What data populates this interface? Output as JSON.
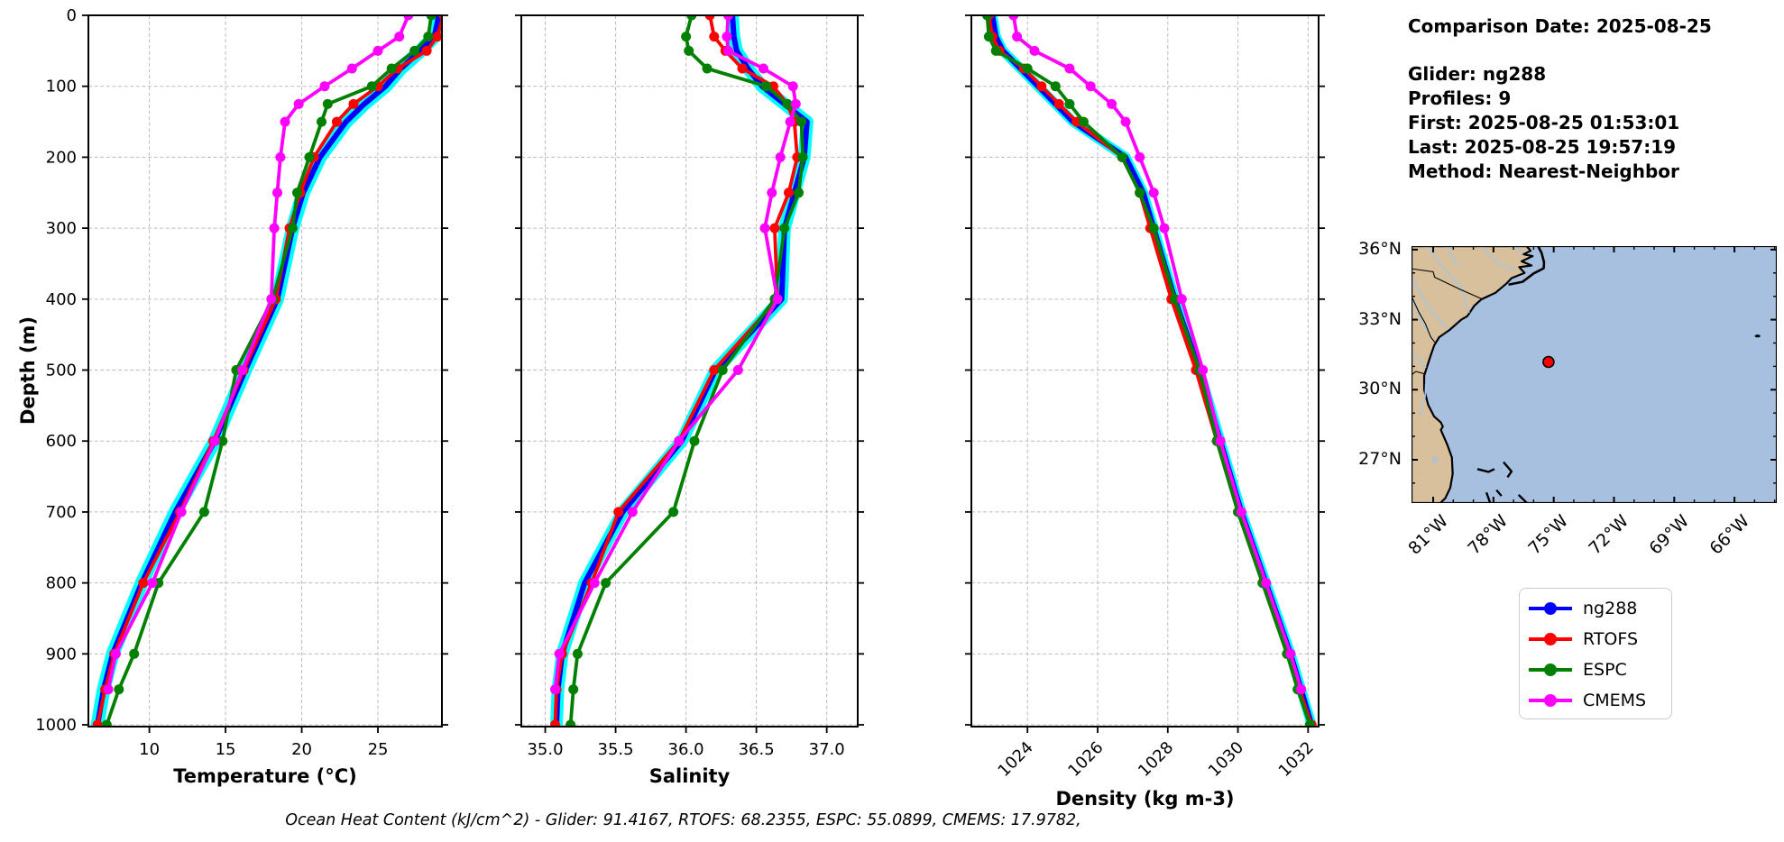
{
  "info": {
    "comparison_date": "Comparison Date: 2025-08-25",
    "glider": "Glider: ng288",
    "profiles": "Profiles: 9",
    "first": "First: 2025-08-25 01:53:01",
    "last": "Last: 2025-08-25 19:57:19",
    "method": "Method: Nearest-Neighbor"
  },
  "caption": "Ocean Heat Content (kJ/cm^2) - Glider: 91.4167,  RTOFS: 68.2355,  ESPC: 55.0899,  CMEMS: 17.9782,",
  "legend": {
    "entries": [
      {
        "label": "ng288",
        "color": "#0000ff"
      },
      {
        "label": "RTOFS",
        "color": "#ff0000"
      },
      {
        "label": "ESPC",
        "color": "#008000"
      },
      {
        "label": "CMEMS",
        "color": "#ff00ff"
      }
    ]
  },
  "map": {
    "lat_labels": [
      "36°N",
      "33°N",
      "30°N",
      "27°N"
    ],
    "lon_labels": [
      "81°W",
      "78°W",
      "75°W",
      "72°W",
      "69°W",
      "66°W"
    ],
    "land_color": "#d9c09c",
    "ocean_color": "#a8c0e0",
    "river_color": "#9ec8ea",
    "lake_color": "#b8bfc9",
    "marker": {
      "lon": -75.26,
      "lat": 31.19,
      "color": "#ff0000"
    }
  },
  "chart_data": [
    {
      "type": "line",
      "id": "temperature",
      "xlabel": "Temperature (°C)",
      "ylabel": "Depth (m)",
      "xlim": [
        6.0,
        29.2
      ],
      "ylim": [
        0,
        1000
      ],
      "xticks": [
        10,
        15,
        20,
        25
      ],
      "xtick_labels": [
        "10",
        "15",
        "20",
        "25"
      ],
      "yticks": [
        0,
        100,
        200,
        300,
        400,
        500,
        600,
        700,
        800,
        900,
        1000
      ],
      "ytick_labels": [
        "0",
        "100",
        "200",
        "300",
        "400",
        "500",
        "600",
        "700",
        "800",
        "900",
        "1000"
      ],
      "grid": true,
      "depths": [
        0,
        30,
        50,
        75,
        100,
        125,
        150,
        200,
        250,
        300,
        400,
        500,
        600,
        700,
        800,
        900,
        950,
        1000
      ],
      "series": [
        {
          "name": "ng288",
          "color": "#0000ff",
          "envelope_color": "#00ffff",
          "marker": false,
          "values": [
            29.0,
            28.7,
            27.8,
            26.5,
            25.5,
            24.1,
            22.9,
            21.2,
            20.1,
            19.4,
            18.4,
            16.3,
            14.3,
            11.7,
            9.5,
            7.6,
            7.0,
            6.6
          ]
        },
        {
          "name": "RTOFS",
          "color": "#ff0000",
          "marker": true,
          "values": [
            29.3,
            28.9,
            28.2,
            26.3,
            25.0,
            23.4,
            22.3,
            20.8,
            19.9,
            19.2,
            18.3,
            16.2,
            14.2,
            12.0,
            9.6,
            7.7,
            7.1,
            6.6
          ]
        },
        {
          "name": "ESPC",
          "color": "#008000",
          "marker": true,
          "values": [
            28.5,
            28.3,
            27.4,
            25.9,
            24.6,
            21.7,
            21.3,
            20.5,
            19.7,
            19.4,
            18.1,
            15.7,
            14.8,
            13.6,
            10.6,
            9.0,
            8.0,
            7.2
          ]
        },
        {
          "name": "CMEMS",
          "color": "#ff00ff",
          "marker": true,
          "values": [
            27.0,
            26.4,
            25.0,
            23.3,
            21.5,
            19.8,
            18.9,
            18.6,
            18.4,
            18.2,
            18.0,
            16.1,
            14.3,
            12.1,
            10.2,
            7.8,
            7.3,
            null
          ]
        }
      ]
    },
    {
      "type": "line",
      "id": "salinity",
      "xlabel": "Salinity",
      "xlim": [
        34.83,
        37.22
      ],
      "ylim": [
        0,
        1000
      ],
      "xticks": [
        35.0,
        35.5,
        36.0,
        36.5,
        37.0
      ],
      "xtick_labels": [
        "35.0",
        "35.5",
        "36.0",
        "36.5",
        "37.0"
      ],
      "yticks": [
        0,
        100,
        200,
        300,
        400,
        500,
        600,
        700,
        800,
        900,
        1000
      ],
      "grid": true,
      "depths": [
        0,
        30,
        50,
        75,
        100,
        125,
        150,
        200,
        250,
        300,
        400,
        500,
        600,
        700,
        800,
        900,
        950,
        1000
      ],
      "series": [
        {
          "name": "ng288",
          "color": "#0000ff",
          "envelope_color": "#00ffff",
          "marker": false,
          "values": [
            36.33,
            36.34,
            36.36,
            36.44,
            36.54,
            36.7,
            36.86,
            36.84,
            36.77,
            36.7,
            36.68,
            36.21,
            35.97,
            35.55,
            35.28,
            35.12,
            35.09,
            35.08
          ]
        },
        {
          "name": "RTOFS",
          "color": "#ff0000",
          "marker": true,
          "values": [
            36.17,
            36.2,
            36.28,
            36.4,
            36.62,
            36.72,
            36.77,
            36.79,
            36.73,
            36.63,
            36.65,
            36.2,
            35.95,
            35.52,
            35.33,
            35.12,
            35.08,
            35.07
          ]
        },
        {
          "name": "ESPC",
          "color": "#008000",
          "marker": true,
          "values": [
            36.04,
            36.0,
            36.02,
            36.15,
            36.57,
            36.72,
            36.82,
            36.83,
            36.8,
            36.7,
            36.63,
            36.26,
            36.06,
            35.91,
            35.43,
            35.23,
            35.2,
            35.18
          ]
        },
        {
          "name": "CMEMS",
          "color": "#ff00ff",
          "marker": true,
          "values": [
            36.3,
            36.29,
            36.3,
            36.55,
            36.76,
            36.78,
            36.74,
            36.67,
            36.61,
            36.56,
            36.65,
            36.37,
            35.95,
            35.62,
            35.35,
            35.1,
            35.07,
            null
          ]
        }
      ]
    },
    {
      "type": "line",
      "id": "density",
      "xlabel": "Density (kg m-3)",
      "xlim": [
        1022.4,
        1032.3
      ],
      "ylim": [
        0,
        1000
      ],
      "xticks": [
        1024,
        1026,
        1028,
        1030,
        1032
      ],
      "xtick_labels": [
        "1024",
        "1026",
        "1028",
        "1030",
        "1032"
      ],
      "yticks": [
        0,
        100,
        200,
        300,
        400,
        500,
        600,
        700,
        800,
        900,
        1000
      ],
      "grid": true,
      "depths": [
        0,
        30,
        50,
        75,
        100,
        125,
        150,
        200,
        250,
        300,
        400,
        500,
        600,
        700,
        800,
        900,
        950,
        1000
      ],
      "series": [
        {
          "name": "ng288",
          "color": "#0000ff",
          "envelope_color": "#00ffff",
          "marker": false,
          "values": [
            1023.0,
            1023.1,
            1023.3,
            1023.8,
            1024.3,
            1024.8,
            1025.3,
            1026.8,
            1027.3,
            1027.6,
            1028.2,
            1028.9,
            1029.5,
            1030.1,
            1030.8,
            1031.5,
            1031.8,
            1032.1
          ]
        },
        {
          "name": "RTOFS",
          "color": "#ff0000",
          "marker": true,
          "values": [
            1022.9,
            1023.0,
            1023.2,
            1023.9,
            1024.4,
            1024.9,
            1025.4,
            1026.7,
            1027.2,
            1027.5,
            1028.1,
            1028.8,
            1029.4,
            1030.0,
            1030.7,
            1031.4,
            1031.75,
            1032.1
          ]
        },
        {
          "name": "ESPC",
          "color": "#008000",
          "marker": true,
          "values": [
            1022.85,
            1022.9,
            1023.1,
            1024.0,
            1024.8,
            1025.2,
            1025.6,
            1026.7,
            1027.2,
            1027.6,
            1028.2,
            1028.9,
            1029.4,
            1030.0,
            1030.7,
            1031.4,
            1031.7,
            1032.05
          ]
        },
        {
          "name": "CMEMS",
          "color": "#ff00ff",
          "marker": true,
          "values": [
            1023.6,
            1023.7,
            1024.2,
            1025.2,
            1025.8,
            1026.4,
            1026.8,
            1027.2,
            1027.6,
            1027.9,
            1028.4,
            1029.0,
            1029.5,
            1030.1,
            1030.8,
            1031.5,
            1031.8,
            null
          ]
        }
      ]
    }
  ]
}
